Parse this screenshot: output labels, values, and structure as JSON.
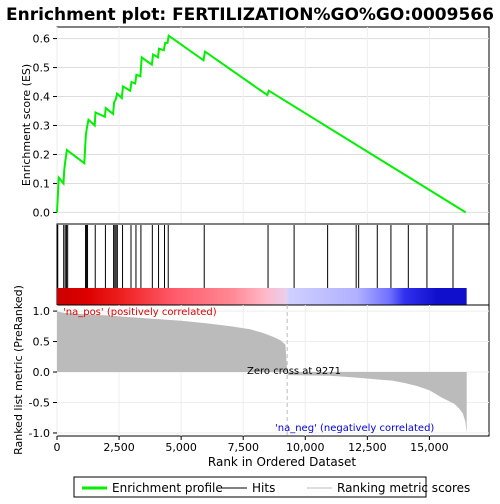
{
  "chart_data": {
    "type": "line",
    "title": "Enrichment plot: FERTILIZATION%GO%GO:0009566",
    "es_panel": {
      "ylabel": "Enrichment score (ES)",
      "ylim": [
        -0.04,
        0.64
      ],
      "yticks": [
        "0.0",
        "0.1",
        "0.2",
        "0.3",
        "0.4",
        "0.5",
        "0.6"
      ],
      "ytick_values": [
        0.0,
        0.1,
        0.2,
        0.3,
        0.4,
        0.5,
        0.6
      ],
      "line_color": "#00ee00",
      "profile": {
        "x": [
          0,
          70,
          260,
          290,
          340,
          400,
          1100,
          1160,
          1200,
          1270,
          1520,
          1550,
          1930,
          1960,
          2260,
          2300,
          2370,
          2420,
          2610,
          2660,
          2950,
          3000,
          3150,
          3200,
          3360,
          3410,
          3820,
          3870,
          4070,
          4110,
          4300,
          4360,
          4450,
          4500,
          5900,
          5960,
          8470,
          8530,
          16460
        ],
        "y": [
          0.0,
          0.12,
          0.1,
          0.145,
          0.18,
          0.215,
          0.17,
          0.265,
          0.29,
          0.32,
          0.3,
          0.345,
          0.33,
          0.36,
          0.34,
          0.38,
          0.39,
          0.41,
          0.395,
          0.435,
          0.42,
          0.45,
          0.445,
          0.475,
          0.47,
          0.535,
          0.51,
          0.545,
          0.535,
          0.565,
          0.56,
          0.585,
          0.585,
          0.61,
          0.525,
          0.555,
          0.405,
          0.42,
          0.0
        ]
      }
    },
    "hits": [
      30,
      270,
      330,
      380,
      430,
      1150,
      1190,
      1230,
      1540,
      1950,
      2280,
      2330,
      2380,
      2430,
      2640,
      2980,
      3180,
      3380,
      3840,
      4090,
      4330,
      4480,
      5930,
      8500,
      9550,
      10900,
      12050,
      12150,
      12900,
      13450,
      14150,
      14900,
      15950
    ],
    "color_bar": {
      "stops": [
        "#cc0000",
        "#dd0000",
        "#ee2020",
        "#ff5a6a",
        "#ff8a95",
        "#ffb8c8",
        "#e8d0f0",
        "#d0d0ff",
        "#b0b0ff",
        "#7070ff",
        "#3030ee",
        "#1010cc"
      ],
      "stop_ranks": [
        0,
        1200,
        2600,
        4700,
        7100,
        8400,
        9271,
        9300,
        12100,
        13400,
        14000,
        15300,
        16500
      ]
    },
    "metric_panel": {
      "ylabel": "Ranked list metric (PreRanked)",
      "xlabel": "Rank in Ordered Dataset",
      "ylim": [
        -1.05,
        1.1
      ],
      "yticks": [
        "1.0",
        "0.5",
        "0.0",
        "-0.5",
        "-1.0"
      ],
      "ytick_values": [
        1.0,
        0.5,
        0.0,
        -0.5,
        -1.0
      ],
      "xticks": [
        "0",
        "2,500",
        "5,000",
        "7,500",
        "10,000",
        "12,500",
        "15,000"
      ],
      "xtick_values": [
        0,
        2500,
        5000,
        7500,
        10000,
        12500,
        15000
      ],
      "xlim": [
        0,
        17400
      ],
      "n_genes": 16500,
      "zero_cross": 9271,
      "zero_cross_label": "Zero cross at 9271",
      "pos_label": "'na_pos' (positively correlated)",
      "neg_label": "'na_neg' (negatively correlated)",
      "pos_color": "#dd0000",
      "neg_color": "#0000dd",
      "bar_color": "#bbbbbb",
      "metric_curve": {
        "rank": [
          0,
          50,
          300,
          1000,
          2000,
          3000,
          4000,
          5000,
          6000,
          7000,
          7800,
          8300,
          8700,
          9000,
          9200,
          9271,
          9300,
          11000,
          12000,
          12800,
          13500,
          14000,
          14500,
          15000,
          15500,
          16000,
          16200,
          16350,
          16450,
          16500
        ],
        "value": [
          1.0,
          0.99,
          0.97,
          0.95,
          0.93,
          0.9,
          0.87,
          0.84,
          0.8,
          0.75,
          0.7,
          0.64,
          0.58,
          0.52,
          0.45,
          0.0,
          -0.05,
          -0.06,
          -0.09,
          -0.12,
          -0.14,
          -0.18,
          -0.23,
          -0.3,
          -0.42,
          -0.52,
          -0.6,
          -0.68,
          -0.82,
          -1.0
        ]
      }
    },
    "legend": {
      "items": [
        {
          "label": "Enrichment profile",
          "color": "#00ee00",
          "kind": "line"
        },
        {
          "label": "Hits",
          "color": "#000000",
          "kind": "line"
        },
        {
          "label": "Ranking metric scores",
          "color": "#bbbbbb",
          "kind": "line"
        }
      ]
    }
  }
}
